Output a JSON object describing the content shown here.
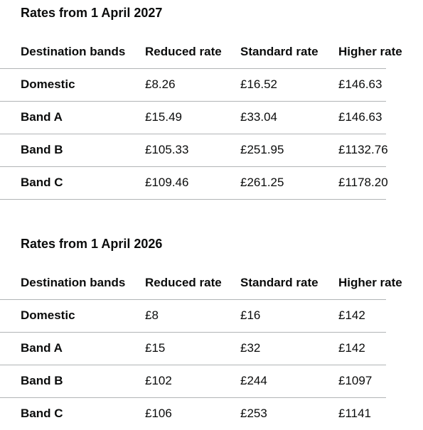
{
  "sections": [
    {
      "title": "Rates from 1 April 2027",
      "table": {
        "headers": [
          "Destination bands",
          "Reduced rate",
          "Standard rate",
          "Higher rate"
        ],
        "rows": [
          [
            "Domestic",
            "£8.26",
            "£16.52",
            "£146.63"
          ],
          [
            "Band A",
            "£15.49",
            "£33.04",
            "£146.63"
          ],
          [
            "Band B",
            "£105.33",
            "£251.95",
            "£1132.76"
          ],
          [
            "Band C",
            "£109.46",
            "£261.25",
            "£1178.20"
          ]
        ]
      }
    },
    {
      "title": "Rates from 1 April 2026",
      "table": {
        "headers": [
          "Destination bands",
          "Reduced rate",
          "Standard rate",
          "Higher rate"
        ],
        "rows": [
          [
            "Domestic",
            "£8",
            "£16",
            "£142"
          ],
          [
            "Band A",
            "£15",
            "£32",
            "£142"
          ],
          [
            "Band B",
            "£102",
            "£244",
            "£1097"
          ],
          [
            "Band C",
            "£106",
            "£253",
            "£1141"
          ]
        ]
      }
    }
  ]
}
